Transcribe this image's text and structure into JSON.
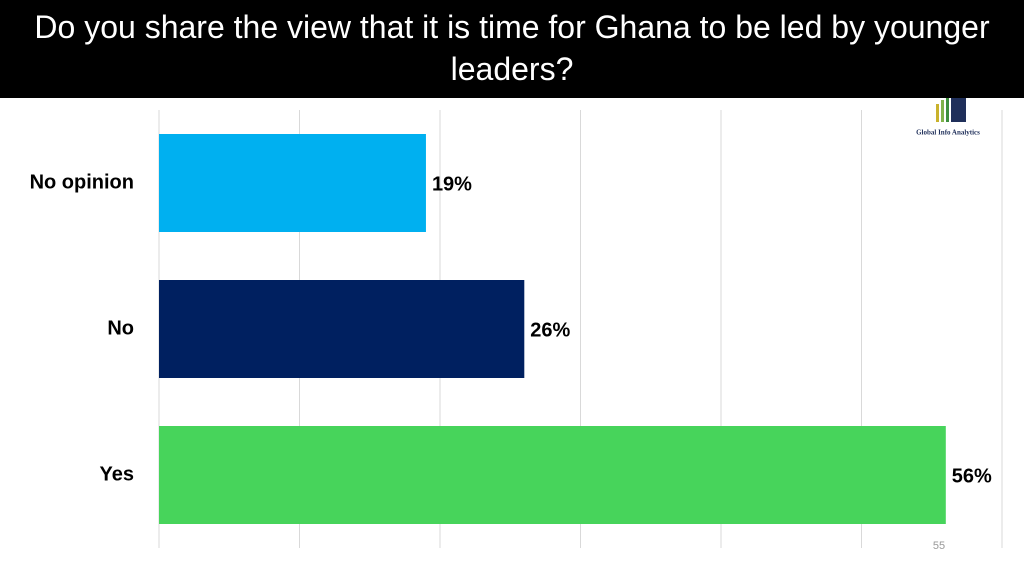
{
  "chart_data": {
    "type": "hbar",
    "title": "Do you share the view that it is time for Ghana to be led by younger leaders?",
    "categories": [
      "No opinion",
      "No",
      "Yes"
    ],
    "values": [
      19,
      26,
      56
    ],
    "value_labels": [
      "19%",
      "26%",
      "56%"
    ],
    "colors": [
      "#00b0f0",
      "#002060",
      "#47d45b"
    ],
    "xlim": [
      0,
      60
    ],
    "xticks": [
      0,
      10,
      20,
      30,
      40,
      50,
      60
    ],
    "grid": true
  },
  "logo": "Global Info Analytics",
  "page_number": "55"
}
